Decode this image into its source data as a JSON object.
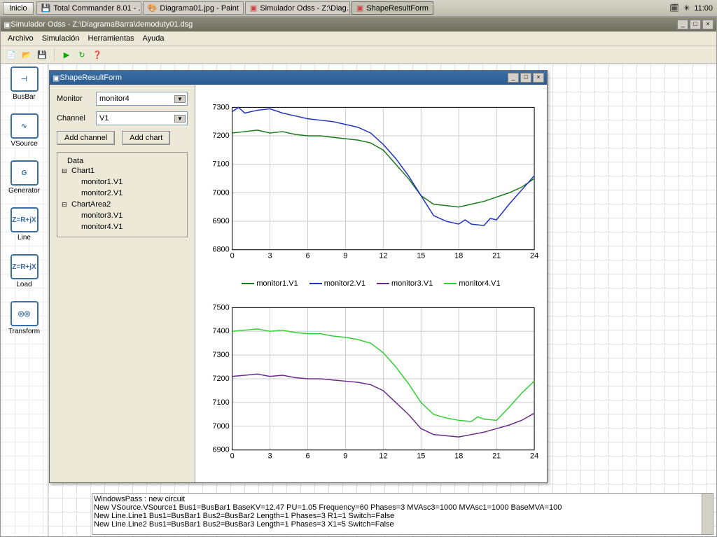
{
  "taskbar": {
    "start": "Inicio",
    "buttons": [
      {
        "label": "Total Commander 8.01 - ...",
        "icon": "💾",
        "color": "#0055aa"
      },
      {
        "label": "Diagrama01.jpg - Paint",
        "icon": "🎨",
        "color": "#cc8800"
      },
      {
        "label": "Simulador Odss - Z:\\Diag...",
        "icon": "▣",
        "color": "#cc4444"
      },
      {
        "label": "ShapeResultForm",
        "icon": "▣",
        "color": "#cc4444",
        "active": true
      }
    ],
    "clock": "11:00"
  },
  "mainwin": {
    "title": "Simulador Odss - Z:\\DiagramaBarra\\demoduty01.dsg",
    "menus": [
      "Archivo",
      "Simulación",
      "Herramientas",
      "Ayuda"
    ],
    "sidebar": [
      {
        "label": "BusBar",
        "glyph": "⊣"
      },
      {
        "label": "VSource",
        "glyph": "∿"
      },
      {
        "label": "Generator",
        "glyph": "G"
      },
      {
        "label": "Line",
        "glyph": "Z=R+jX"
      },
      {
        "label": "Load",
        "glyph": "Z=R+jX"
      },
      {
        "label": "Transform",
        "glyph": "◎◎"
      }
    ],
    "console": [
      "WindowsPass : new circuit",
      "New VSource.VSource1 Bus1=BusBar1 BaseKV=12.47 PU=1.05 Frequency=60 Phases=3 MVAsc3=1000 MVAsc1=1000 BaseMVA=100",
      "New Line.Line1 Bus1=BusBar1 Bus2=BusBar2 Length=1 Phases=3 R1=1 Switch=False",
      "New Line.Line2 Bus1=BusBar1 Bus2=BusBar3 Length=1 Phases=3 X1=5 Switch=False"
    ]
  },
  "shapewin": {
    "title": "ShapeResultForm",
    "controls": {
      "monitor_label": "Monitor",
      "monitor_value": "monitor4",
      "channel_label": "Channel",
      "channel_value": "V1",
      "add_channel": "Add channel",
      "add_chart": "Add chart",
      "data_label": "Data"
    },
    "tree": [
      {
        "label": "Chart1",
        "children": [
          "monitor1.V1",
          "monitor2.V1"
        ]
      },
      {
        "label": "ChartArea2",
        "children": [
          "monitor3.V1",
          "monitor4.V1"
        ]
      }
    ],
    "legend": [
      {
        "label": "monitor1.V1",
        "color": "#1a7a1a"
      },
      {
        "label": "monitor2.V1",
        "color": "#2030c0"
      },
      {
        "label": "monitor3.V1",
        "color": "#6a2a8a"
      },
      {
        "label": "monitor4.V1",
        "color": "#30d030"
      }
    ],
    "chart1": {
      "ylim": [
        6800,
        7300
      ],
      "ytick": 100,
      "xlim": [
        0,
        24
      ],
      "xtick": 3,
      "series": [
        {
          "color": "#1a7a1a",
          "width": 1.5,
          "data": [
            [
              0,
              7210
            ],
            [
              1,
              7215
            ],
            [
              2,
              7220
            ],
            [
              3,
              7210
            ],
            [
              4,
              7215
            ],
            [
              5,
              7205
            ],
            [
              6,
              7200
            ],
            [
              7,
              7200
            ],
            [
              8,
              7195
            ],
            [
              9,
              7190
            ],
            [
              10,
              7185
            ],
            [
              11,
              7175
            ],
            [
              12,
              7150
            ],
            [
              13,
              7100
            ],
            [
              14,
              7050
            ],
            [
              15,
              6990
            ],
            [
              16,
              6960
            ],
            [
              17,
              6955
            ],
            [
              18,
              6950
            ],
            [
              19,
              6960
            ],
            [
              20,
              6970
            ],
            [
              21,
              6985
            ],
            [
              22,
              7000
            ],
            [
              23,
              7020
            ],
            [
              24,
              7050
            ]
          ]
        },
        {
          "color": "#2030c0",
          "width": 1.5,
          "data": [
            [
              0,
              7285
            ],
            [
              0.5,
              7300
            ],
            [
              1,
              7280
            ],
            [
              2,
              7290
            ],
            [
              3,
              7295
            ],
            [
              4,
              7280
            ],
            [
              5,
              7270
            ],
            [
              6,
              7260
            ],
            [
              7,
              7255
            ],
            [
              8,
              7250
            ],
            [
              9,
              7240
            ],
            [
              10,
              7230
            ],
            [
              11,
              7210
            ],
            [
              12,
              7170
            ],
            [
              13,
              7120
            ],
            [
              14,
              7060
            ],
            [
              15,
              6990
            ],
            [
              16,
              6920
            ],
            [
              17,
              6900
            ],
            [
              18,
              6890
            ],
            [
              18.5,
              6905
            ],
            [
              19,
              6890
            ],
            [
              20,
              6885
            ],
            [
              20.5,
              6910
            ],
            [
              21,
              6905
            ],
            [
              22,
              6960
            ],
            [
              23,
              7010
            ],
            [
              24,
              7060
            ]
          ]
        }
      ]
    },
    "chart2": {
      "ylim": [
        6900,
        7500
      ],
      "ytick": 100,
      "xlim": [
        0,
        24
      ],
      "xtick": 3,
      "series": [
        {
          "color": "#6a2a8a",
          "width": 1.5,
          "data": [
            [
              0,
              7210
            ],
            [
              1,
              7215
            ],
            [
              2,
              7220
            ],
            [
              3,
              7210
            ],
            [
              4,
              7215
            ],
            [
              5,
              7205
            ],
            [
              6,
              7200
            ],
            [
              7,
              7200
            ],
            [
              8,
              7195
            ],
            [
              9,
              7190
            ],
            [
              10,
              7185
            ],
            [
              11,
              7175
            ],
            [
              12,
              7150
            ],
            [
              13,
              7100
            ],
            [
              14,
              7050
            ],
            [
              15,
              6990
            ],
            [
              16,
              6965
            ],
            [
              17,
              6960
            ],
            [
              18,
              6955
            ],
            [
              19,
              6965
            ],
            [
              20,
              6975
            ],
            [
              21,
              6990
            ],
            [
              22,
              7005
            ],
            [
              23,
              7025
            ],
            [
              24,
              7055
            ]
          ]
        },
        {
          "color": "#30d030",
          "width": 1.5,
          "data": [
            [
              0,
              7400
            ],
            [
              1,
              7405
            ],
            [
              2,
              7410
            ],
            [
              3,
              7400
            ],
            [
              4,
              7405
            ],
            [
              5,
              7395
            ],
            [
              6,
              7390
            ],
            [
              7,
              7390
            ],
            [
              8,
              7380
            ],
            [
              9,
              7375
            ],
            [
              10,
              7365
            ],
            [
              11,
              7350
            ],
            [
              12,
              7310
            ],
            [
              13,
              7250
            ],
            [
              14,
              7180
            ],
            [
              15,
              7100
            ],
            [
              16,
              7050
            ],
            [
              17,
              7035
            ],
            [
              18,
              7025
            ],
            [
              19,
              7020
            ],
            [
              19.5,
              7040
            ],
            [
              20,
              7030
            ],
            [
              21,
              7025
            ],
            [
              22,
              7080
            ],
            [
              23,
              7140
            ],
            [
              24,
              7190
            ]
          ]
        }
      ]
    }
  }
}
